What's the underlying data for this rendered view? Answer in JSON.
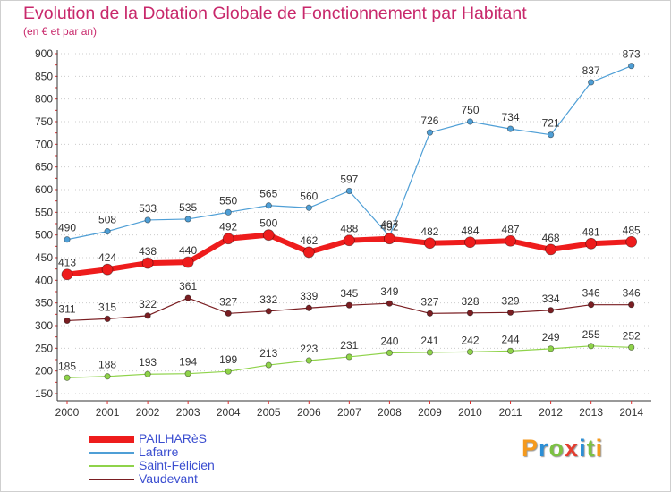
{
  "title": "Evolution de la Dotation Globale de Fonctionnement par Habitant",
  "subtitle": "(en € et par an)",
  "logo": {
    "letters": [
      "P",
      "r",
      "o",
      "x",
      "i",
      "t",
      "i"
    ],
    "colors": [
      "#f59a1d",
      "#2c8fd6",
      "#7cc242",
      "#e43d2f",
      "#2c8fd6",
      "#7cc242",
      "#f59a1d"
    ]
  },
  "chart_data": {
    "type": "line",
    "title": "Evolution de la Dotation Globale de Fonctionnement par Habitant",
    "subtitle": "(en € et par an)",
    "xlabel": "",
    "ylabel": "",
    "x": [
      "2000",
      "2001",
      "2002",
      "2003",
      "2004",
      "2005",
      "2006",
      "2007",
      "2008",
      "2009",
      "2010",
      "2011",
      "2012",
      "2013",
      "2014"
    ],
    "ylim": [
      150,
      900
    ],
    "yticks": [
      150,
      200,
      250,
      300,
      350,
      400,
      450,
      500,
      550,
      600,
      650,
      700,
      750,
      800,
      850,
      900
    ],
    "grid": "horizontal dotted",
    "legend": "bottom-left",
    "series": [
      {
        "name": "Lafarre",
        "color": "#4f9fd6",
        "values": [
          490,
          508,
          533,
          535,
          550,
          565,
          560,
          597,
          497,
          726,
          750,
          734,
          721,
          837,
          873
        ]
      },
      {
        "name": "Vaudevant",
        "color": "#7a1e22",
        "values": [
          311,
          315,
          322,
          361,
          327,
          332,
          339,
          345,
          349,
          327,
          328,
          329,
          334,
          346,
          346
        ]
      },
      {
        "name": "Saint-Félicien",
        "color": "#8fd34a",
        "values": [
          185,
          188,
          193,
          194,
          199,
          213,
          223,
          231,
          240,
          241,
          242,
          244,
          249,
          255,
          252
        ]
      },
      {
        "name": "PAILHARèS",
        "color": "#ee1c1c",
        "values": [
          413,
          424,
          438,
          440,
          492,
          500,
          462,
          488,
          492,
          482,
          484,
          487,
          468,
          481,
          485
        ]
      }
    ],
    "legend_order": [
      "PAILHARèS",
      "Lafarre",
      "Saint-Félicien",
      "Vaudevant"
    ]
  }
}
